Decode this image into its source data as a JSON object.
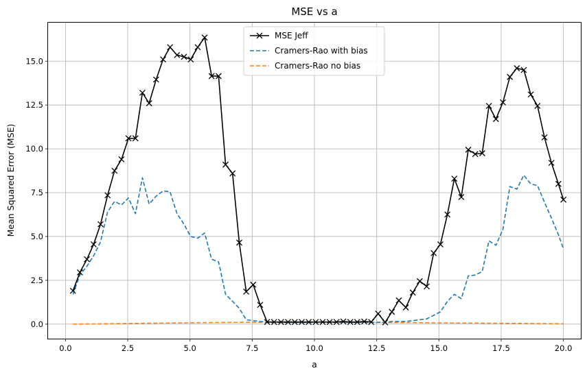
{
  "chart_data": {
    "type": "line",
    "title": "MSE vs a",
    "xlabel": "a",
    "ylabel": "Mean Squared Error (MSE)",
    "xlim": [
      -0.7,
      20.7
    ],
    "ylim": [
      -0.83,
      17.2
    ],
    "xticks": [
      0.0,
      2.5,
      5.0,
      7.5,
      10.0,
      12.5,
      15.0,
      17.5,
      20.0
    ],
    "xtick_labels": [
      "0.0",
      "2.5",
      "5.0",
      "7.5",
      "10.0",
      "12.5",
      "15.0",
      "17.5",
      "20.0"
    ],
    "yticks": [
      0.0,
      2.5,
      5.0,
      7.5,
      10.0,
      12.5,
      15.0
    ],
    "ytick_labels": [
      "0.0",
      "2.5",
      "5.0",
      "7.5",
      "10.0",
      "12.5",
      "15.0"
    ],
    "grid": true,
    "legend_position": "top-center",
    "x": [
      0.3,
      0.58,
      0.86,
      1.13,
      1.41,
      1.69,
      1.97,
      2.25,
      2.53,
      2.81,
      3.09,
      3.36,
      3.64,
      3.92,
      4.2,
      4.48,
      4.76,
      5.03,
      5.31,
      5.59,
      5.87,
      6.15,
      6.43,
      6.71,
      6.98,
      7.26,
      7.54,
      7.82,
      8.1,
      8.38,
      8.66,
      8.94,
      9.21,
      9.49,
      9.77,
      10.05,
      10.33,
      10.61,
      10.89,
      11.16,
      11.44,
      11.72,
      12.0,
      12.28,
      12.56,
      12.84,
      13.11,
      13.39,
      13.67,
      13.95,
      14.23,
      14.51,
      14.79,
      15.06,
      15.34,
      15.62,
      15.9,
      16.18,
      16.46,
      16.74,
      17.01,
      17.29,
      17.57,
      17.85,
      18.13,
      18.41,
      18.69,
      18.96,
      19.24,
      19.52,
      19.8,
      20.0
    ],
    "series": [
      {
        "name": "MSE Jeff",
        "color": "#000000",
        "style": "solid",
        "marker": "x",
        "values": [
          1.9,
          2.95,
          3.7,
          4.55,
          5.7,
          7.35,
          8.75,
          9.4,
          10.6,
          10.6,
          13.2,
          12.6,
          13.95,
          15.1,
          15.8,
          15.35,
          15.25,
          15.1,
          15.8,
          16.35,
          14.15,
          14.15,
          9.1,
          8.6,
          4.65,
          1.85,
          2.25,
          1.1,
          0.12,
          0.12,
          0.12,
          0.12,
          0.12,
          0.12,
          0.12,
          0.12,
          0.12,
          0.12,
          0.12,
          0.15,
          0.12,
          0.12,
          0.15,
          0.12,
          0.6,
          0.1,
          0.7,
          1.35,
          0.95,
          1.8,
          2.45,
          2.15,
          4.05,
          4.55,
          6.25,
          8.3,
          7.25,
          9.95,
          9.7,
          9.75,
          12.45,
          11.7,
          12.65,
          14.1,
          14.6,
          14.5,
          13.1,
          12.45,
          10.65,
          9.2,
          8.0,
          7.1
        ]
      },
      {
        "name": "Cramers-Rao with bias",
        "color": "#1f77b4",
        "style": "dashed",
        "values": [
          1.7,
          2.8,
          3.3,
          3.9,
          4.7,
          6.4,
          7.0,
          6.8,
          7.2,
          6.3,
          8.35,
          6.85,
          7.3,
          7.6,
          7.55,
          6.3,
          5.7,
          5.0,
          4.9,
          5.2,
          3.7,
          3.55,
          1.7,
          1.3,
          0.9,
          0.25,
          0.2,
          0.15,
          0.1,
          0.1,
          0.1,
          0.1,
          0.1,
          0.1,
          0.1,
          0.1,
          0.1,
          0.1,
          0.1,
          0.1,
          0.1,
          0.1,
          0.1,
          0.1,
          0.1,
          0.1,
          0.15,
          0.15,
          0.15,
          0.2,
          0.25,
          0.3,
          0.5,
          0.7,
          1.3,
          1.7,
          1.45,
          2.75,
          2.8,
          3.0,
          4.75,
          4.5,
          5.4,
          7.85,
          7.7,
          8.5,
          8.0,
          7.9,
          6.95,
          6.05,
          5.1,
          4.3
        ]
      },
      {
        "name": "Cramers-Rao no bias",
        "color": "#ff7f0e",
        "style": "dashed",
        "values": [
          0.003,
          0.005,
          0.008,
          0.011,
          0.015,
          0.019,
          0.023,
          0.028,
          0.033,
          0.038,
          0.043,
          0.048,
          0.053,
          0.058,
          0.063,
          0.068,
          0.072,
          0.076,
          0.08,
          0.084,
          0.088,
          0.091,
          0.094,
          0.097,
          0.1,
          0.102,
          0.104,
          0.105,
          0.107,
          0.108,
          0.109,
          0.11,
          0.11,
          0.11,
          0.11,
          0.11,
          0.11,
          0.109,
          0.108,
          0.107,
          0.106,
          0.104,
          0.102,
          0.1,
          0.098,
          0.095,
          0.092,
          0.089,
          0.086,
          0.083,
          0.08,
          0.077,
          0.074,
          0.071,
          0.068,
          0.065,
          0.062,
          0.059,
          0.056,
          0.053,
          0.05,
          0.047,
          0.044,
          0.041,
          0.038,
          0.035,
          0.032,
          0.029,
          0.026,
          0.023,
          0.02,
          0.018
        ]
      }
    ]
  }
}
